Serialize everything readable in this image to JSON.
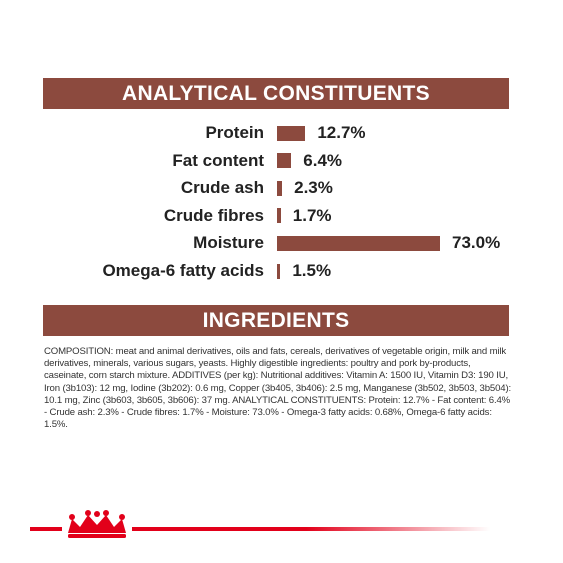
{
  "chart_data": {
    "type": "bar",
    "title": "ANALYTICAL CONSTITUENTS",
    "categories": [
      "Protein",
      "Fat content",
      "Crude ash",
      "Crude fibres",
      "Moisture",
      "Omega-6 fatty acids"
    ],
    "values": [
      12.7,
      6.4,
      2.3,
      1.7,
      73.0,
      1.5
    ],
    "value_labels": [
      "12.7%",
      "6.4%",
      "2.3%",
      "1.7%",
      "73.0%",
      "1.5%"
    ],
    "color": "#8c4a3e"
  },
  "ingredients": {
    "title": "INGREDIENTS",
    "text": "COMPOSITION: meat and animal derivatives, oils and fats, cereals, derivatives of vegetable origin, milk and milk derivatives, minerals, various sugars, yeasts. Highly digestible ingredients: poultry and pork by-products, caseinate, corn starch mixture. ADDITIVES (per kg): Nutritional additives: Vitamin A: 1500 IU, Vitamin D3: 190 IU, Iron (3b103): 12 mg, Iodine (3b202): 0.6 mg, Copper (3b405, 3b406): 2.5 mg, Manganese (3b502, 3b503, 3b504): 10.1 mg, Zinc (3b603, 3b605, 3b606): 37 mg. ANALYTICAL CONSTITUENTS: Protein: 12.7% - Fat content: 6.4% - Crude ash: 2.3% - Crude fibres: 1.7% - Moisture: 73.0% - Omega-3 fatty acids: 0.68%, Omega-6 fatty acids: 1.5%."
  }
}
